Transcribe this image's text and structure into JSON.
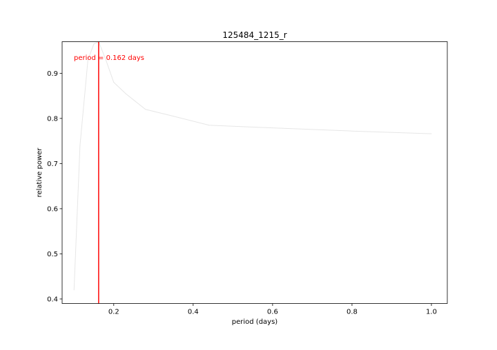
{
  "chart_data": {
    "type": "line",
    "title": "125484_1215_r",
    "xlabel": "period (days)",
    "ylabel": "relative power",
    "xlim": [
      0.07,
      1.04
    ],
    "ylim": [
      0.39,
      0.97
    ],
    "xticks": [
      0.2,
      0.4,
      0.6,
      0.8,
      1.0
    ],
    "xtick_labels": [
      "0.2",
      "0.4",
      "0.6",
      "0.8",
      "1.0"
    ],
    "yticks": [
      0.4,
      0.5,
      0.6,
      0.7,
      0.8,
      0.9
    ],
    "ytick_labels": [
      "0.4",
      "0.5",
      "0.6",
      "0.7",
      "0.8",
      "0.9"
    ],
    "grid": false,
    "series": [
      {
        "color": "#e6e6e6",
        "x": [
          0.1,
          0.115,
          0.135,
          0.15,
          0.162,
          0.18,
          0.2,
          0.23,
          0.28,
          0.35,
          0.44,
          0.6,
          0.8,
          1.0
        ],
        "y": [
          0.42,
          0.74,
          0.93,
          0.965,
          0.97,
          0.93,
          0.88,
          0.855,
          0.82,
          0.805,
          0.785,
          0.779,
          0.772,
          0.766
        ]
      }
    ],
    "vline": {
      "x": 0.162,
      "color": "#ff0000"
    },
    "annotation": {
      "text": "period = 0.162 days",
      "color": "#ff0000"
    }
  }
}
